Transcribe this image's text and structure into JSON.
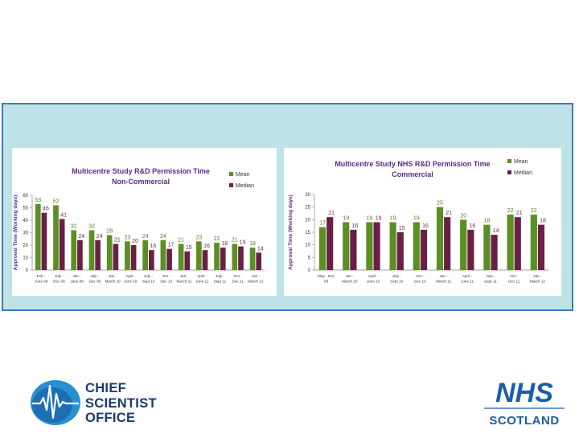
{
  "logos": {
    "cso": {
      "lines": [
        "CHIEF",
        "SCIENTIST",
        "OFFICE"
      ]
    },
    "nhs": {
      "top": "NHS",
      "bottom": "SCOTLAND"
    }
  },
  "colors": {
    "mean": "#5c8f23",
    "median": "#6b1f45",
    "panel": "#bde3e6",
    "border": "#3a7dbb",
    "title": "#5b2a86"
  },
  "chart_data": [
    {
      "type": "bar",
      "title": "Multicentre Study R&D Permission Time",
      "subtitle": "Non-Commercial",
      "ylabel": "Approval Time (Working days)",
      "xlabel": "",
      "ylim": [
        0,
        60
      ],
      "yticks": [
        0,
        10,
        20,
        30,
        40,
        50,
        60
      ],
      "legend": "top-right",
      "categories": [
        [
          "Feb -",
          "June 08"
        ],
        [
          "July -",
          "Dec 08"
        ],
        [
          "Jan -",
          "June 09"
        ],
        [
          "July -",
          "Dec 09"
        ],
        [
          "Jan -",
          "March 10"
        ],
        [
          "April -",
          "June 10"
        ],
        [
          "July -",
          "Sept 10"
        ],
        [
          "Oct -",
          "Dec 10"
        ],
        [
          "Jan -",
          "March 11"
        ],
        [
          "April -",
          "June 11"
        ],
        [
          "July -",
          "Sept 11"
        ],
        [
          "Oct -",
          "Dec 11"
        ],
        [
          "Jan -",
          "March 12"
        ]
      ],
      "series": [
        {
          "name": "Mean",
          "values": [
            53,
            52,
            32,
            32,
            28,
            23,
            24,
            24,
            21,
            23,
            22,
            21,
            18
          ]
        },
        {
          "name": "Median",
          "values": [
            46,
            41,
            24,
            24,
            21,
            20,
            16,
            17,
            15,
            16,
            18,
            19,
            14
          ]
        }
      ]
    },
    {
      "type": "bar",
      "title": "Multicentre Study NHS R&D Permission Time",
      "subtitle": "Commercial",
      "ylabel": "Approval Time (Working days)",
      "xlabel": "",
      "ylim": [
        0,
        30
      ],
      "yticks": [
        0,
        5,
        10,
        15,
        20,
        25,
        30
      ],
      "legend": "top-right",
      "categories": [
        [
          "May - Dec",
          "09"
        ],
        [
          "Jan -",
          "March 10"
        ],
        [
          "April -",
          "June 10"
        ],
        [
          "July -",
          "Sept 10"
        ],
        [
          "Oct -",
          "Dec 10"
        ],
        [
          "Jan -",
          "March 11"
        ],
        [
          "April -",
          "June 11"
        ],
        [
          "July -",
          "Sept 11"
        ],
        [
          "Oct -",
          "Dec 11"
        ],
        [
          "Jan -",
          "March 12"
        ]
      ],
      "series": [
        {
          "name": "Mean",
          "values": [
            17,
            19,
            19,
            19,
            19,
            25,
            20,
            18,
            22,
            22
          ]
        },
        {
          "name": "Median",
          "values": [
            21,
            16,
            19,
            15,
            16,
            21,
            16,
            14,
            21,
            18
          ]
        }
      ]
    }
  ]
}
